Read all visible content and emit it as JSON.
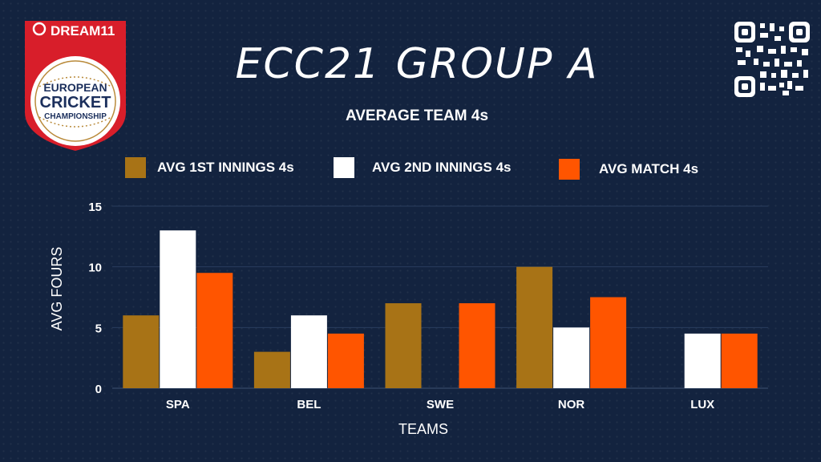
{
  "header": {
    "title": "ECC21 GROUP A",
    "logo_brand": "DREAM11",
    "logo_line1": "EUROPEAN",
    "logo_line2": "CRICKET",
    "logo_line3": "CHAMPIONSHIP"
  },
  "colors": {
    "background": "#13233f",
    "series1": "#a87316",
    "series2": "#ffffff",
    "series3": "#ff5500",
    "text": "#ffffff",
    "logo_red": "#d81e2a"
  },
  "icons": {
    "qr": "qr-code-icon",
    "logo": "european-cricket-championship-logo"
  },
  "chart_data": {
    "type": "bar",
    "title": "AVERAGE TEAM 4s",
    "xlabel": "TEAMS",
    "ylabel": "AVG FOURS",
    "categories": [
      "SPA",
      "BEL",
      "SWE",
      "NOR",
      "LUX"
    ],
    "series": [
      {
        "name": "AVG 1ST INNINGS 4s",
        "values": [
          6,
          3,
          7,
          10,
          0
        ]
      },
      {
        "name": "AVG 2ND INNINGS 4s",
        "values": [
          13,
          6,
          0,
          5,
          4.5
        ]
      },
      {
        "name": "AVG MATCH 4s",
        "values": [
          9.5,
          4.5,
          7,
          7.5,
          4.5
        ]
      }
    ],
    "ylim": [
      0,
      15
    ],
    "yticks": [
      0,
      5,
      10,
      15
    ],
    "grid": true,
    "legend": "top"
  }
}
